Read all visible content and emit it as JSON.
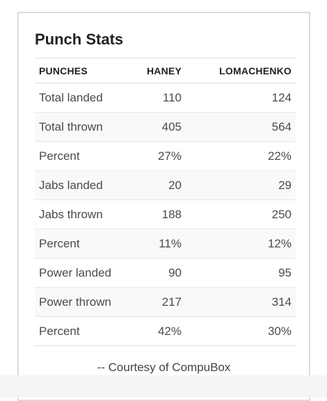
{
  "title": "Punch Stats",
  "headers": [
    "PUNCHES",
    "HANEY",
    "LOMACHENKO"
  ],
  "rows": [
    [
      "Total landed",
      "110",
      "124"
    ],
    [
      "Total thrown",
      "405",
      "564"
    ],
    [
      "Percent",
      "27%",
      "22%"
    ],
    [
      "Jabs landed",
      "20",
      "29"
    ],
    [
      "Jabs thrown",
      "188",
      "250"
    ],
    [
      "Percent",
      "11%",
      "12%"
    ],
    [
      "Power landed",
      "90",
      "95"
    ],
    [
      "Power thrown",
      "217",
      "314"
    ],
    [
      "Percent",
      "42%",
      "30%"
    ]
  ],
  "credit": "-- Courtesy of CompuBox"
}
